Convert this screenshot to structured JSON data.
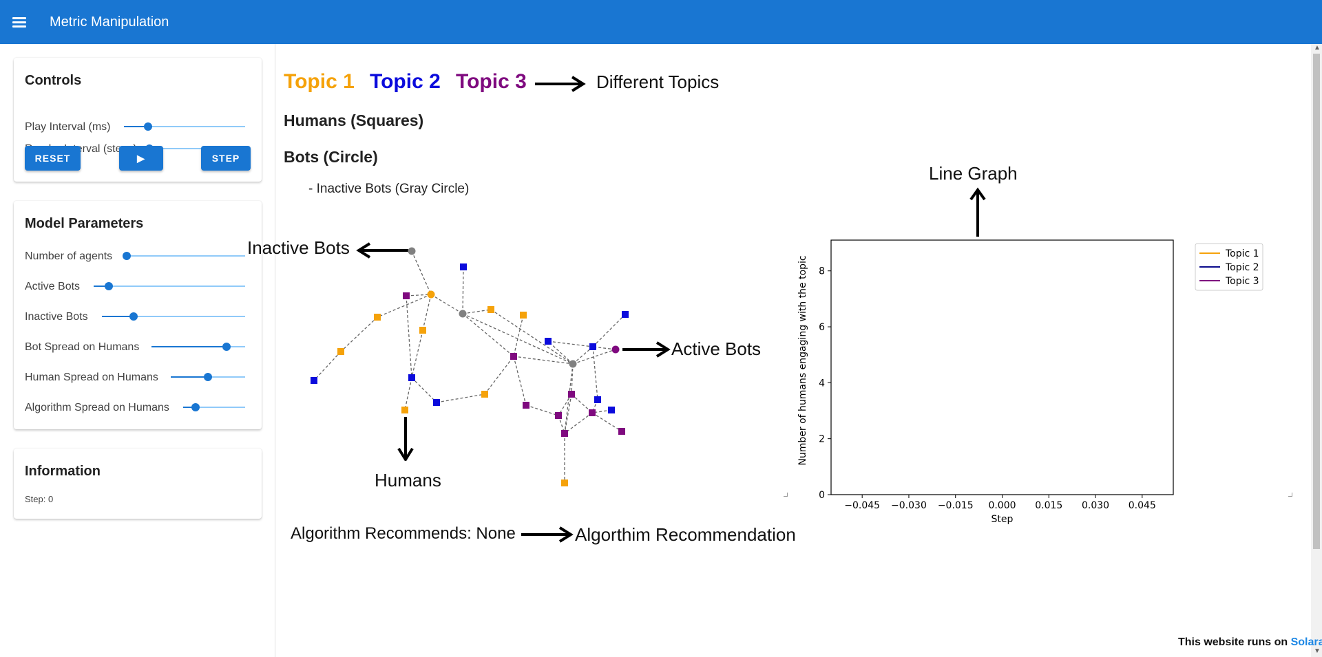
{
  "app": {
    "title": "Metric Manipulation"
  },
  "controls": {
    "title": "Controls",
    "sliders": [
      {
        "label": "Play Interval (ms)",
        "value": 0.2
      },
      {
        "label": "Render Interval (steps)",
        "value": 0.0
      }
    ],
    "reset_label": "RESET",
    "play_label": "▶",
    "step_label": "STEP"
  },
  "model_params": {
    "title": "Model Parameters",
    "sliders": [
      {
        "label": "Number of agents",
        "value": 0.0
      },
      {
        "label": "Active Bots",
        "value": 0.1
      },
      {
        "label": "Inactive Bots",
        "value": 0.22
      },
      {
        "label": "Bot Spread on Humans",
        "value": 0.8
      },
      {
        "label": "Human Spread on Humans",
        "value": 0.5
      },
      {
        "label": "Algorithm Spread on Humans",
        "value": 0.2
      }
    ]
  },
  "information": {
    "title": "Information",
    "step_text": "Step: 0"
  },
  "legend": {
    "topics": [
      {
        "label": "Topic 1",
        "color": "#f5a20a"
      },
      {
        "label": "Topic 2",
        "color": "#0b0bdc"
      },
      {
        "label": "Topic 3",
        "color": "#7f0a7f"
      }
    ],
    "different_topics": "Different Topics"
  },
  "headings": {
    "humans": "Humans (Squares)",
    "bots": "Bots (Circle)",
    "inactive_note": "- Inactive Bots (Gray Circle)"
  },
  "annotations": {
    "inactive_bots": "Inactive Bots",
    "active_bots": "Active Bots",
    "humans": "Humans",
    "line_graph": "Line Graph",
    "algo_recommendation": "Algorthim Recommendation"
  },
  "algo_text": "Algorithm Recommends: None",
  "network": {
    "node_colors": {
      "topic1": "#f5a20a",
      "topic2": "#0b0bdc",
      "topic3": "#7f0a7f",
      "inactive": "#808080"
    },
    "edge_color": "#666666"
  },
  "chart_data": {
    "type": "line",
    "xlabel": "Step",
    "ylabel": "Number of humans engaging with the topic",
    "xlim": [
      -0.055,
      0.055
    ],
    "ylim": [
      0,
      9.1
    ],
    "x_ticks": [
      "−0.045",
      "−0.030",
      "−0.015",
      "0.000",
      "0.015",
      "0.030",
      "0.045"
    ],
    "x_tick_values": [
      -0.045,
      -0.03,
      -0.015,
      0,
      0.015,
      0.03,
      0.045
    ],
    "y_ticks": [
      "0",
      "2",
      "4",
      "6",
      "8"
    ],
    "y_tick_values": [
      0,
      2,
      4,
      6,
      8
    ],
    "series": [
      {
        "name": "Topic 1",
        "color": "#f5a20a",
        "values": []
      },
      {
        "name": "Topic 2",
        "color": "#0b0b8c",
        "values": []
      },
      {
        "name": "Topic 3",
        "color": "#7f0a7f",
        "values": []
      }
    ],
    "legend": "right"
  },
  "footer": {
    "prefix": "This website runs on ",
    "link": "Solara"
  }
}
